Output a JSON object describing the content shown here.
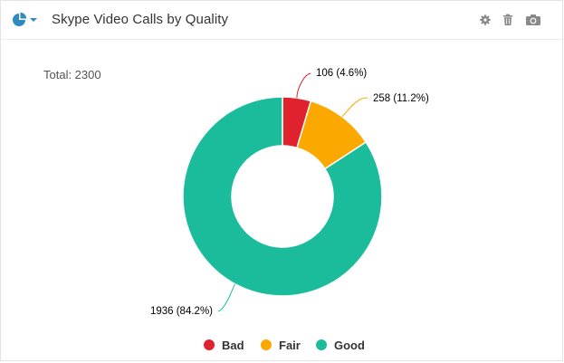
{
  "header": {
    "title": "Skype Video Calls by Quality",
    "chart_type_icon": "pie-chart-icon",
    "tools": [
      "gear-icon",
      "trash-icon",
      "camera-icon"
    ]
  },
  "total_label": "Total: 2300",
  "colors": {
    "Bad": "#e0222f",
    "Fair": "#fba800",
    "Good": "#1abc9c",
    "accent": "#2e8bc0"
  },
  "chart_data": {
    "type": "pie",
    "donut": true,
    "total": 2300,
    "slices": [
      {
        "name": "Bad",
        "value": 106,
        "percent": 4.6,
        "label": "106 (4.6%)",
        "color": "#e0222f"
      },
      {
        "name": "Fair",
        "value": 258,
        "percent": 11.2,
        "label": "258 (11.2%)",
        "color": "#fba800"
      },
      {
        "name": "Good",
        "value": 1936,
        "percent": 84.2,
        "label": "1936 (84.2%)",
        "color": "#1abc9c"
      }
    ],
    "legend_position": "bottom"
  }
}
